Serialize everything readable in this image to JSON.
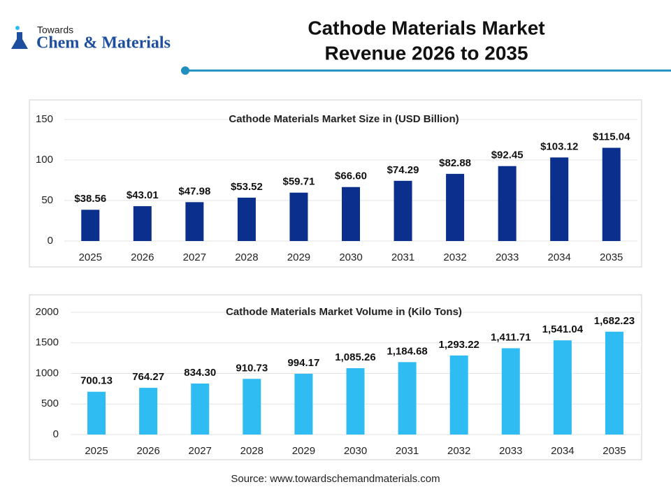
{
  "logo": {
    "top": "Towards",
    "main": "Chem & Materials"
  },
  "title": [
    "Cathode Materials Market",
    "Revenue 2026 to 2035"
  ],
  "chart_data": [
    {
      "type": "bar",
      "title": "Cathode Materials Market Size in (USD Billion)",
      "categories": [
        "2025",
        "2026",
        "2027",
        "2028",
        "2029",
        "2030",
        "2031",
        "2032",
        "2033",
        "2034",
        "2035"
      ],
      "values": [
        38.56,
        43.01,
        47.98,
        53.52,
        59.71,
        66.6,
        74.29,
        82.88,
        92.45,
        103.12,
        115.04
      ],
      "value_labels": [
        "$38.56",
        "$43.01",
        "$47.98",
        "$53.52",
        "$59.71",
        "$66.60",
        "$74.29",
        "$82.88",
        "$92.45",
        "$103.12",
        "$115.04"
      ],
      "color": "#0a2f8c",
      "ylim": [
        0,
        150
      ],
      "yticks": [
        0,
        50,
        100,
        150
      ],
      "grid": true
    },
    {
      "type": "bar",
      "title": "Cathode Materials Market Volume in (Kilo Tons)",
      "categories": [
        "2025",
        "2026",
        "2027",
        "2028",
        "2029",
        "2030",
        "2031",
        "2032",
        "2033",
        "2034",
        "2035"
      ],
      "values": [
        700.13,
        764.27,
        834.3,
        910.73,
        994.17,
        1085.26,
        1184.68,
        1293.22,
        1411.71,
        1541.04,
        1682.23
      ],
      "value_labels": [
        "700.13",
        "764.27",
        "834.30",
        "910.73",
        "994.17",
        "1,085.26",
        "1,184.68",
        "1,293.22",
        "1,411.71",
        "1,541.04",
        "1,682.23"
      ],
      "color": "#2ebcf2",
      "ylim": [
        0,
        2000
      ],
      "yticks": [
        0,
        500,
        1000,
        1500,
        2000
      ],
      "grid": true
    }
  ],
  "source": "Source: www.towardschemandmaterials.com"
}
